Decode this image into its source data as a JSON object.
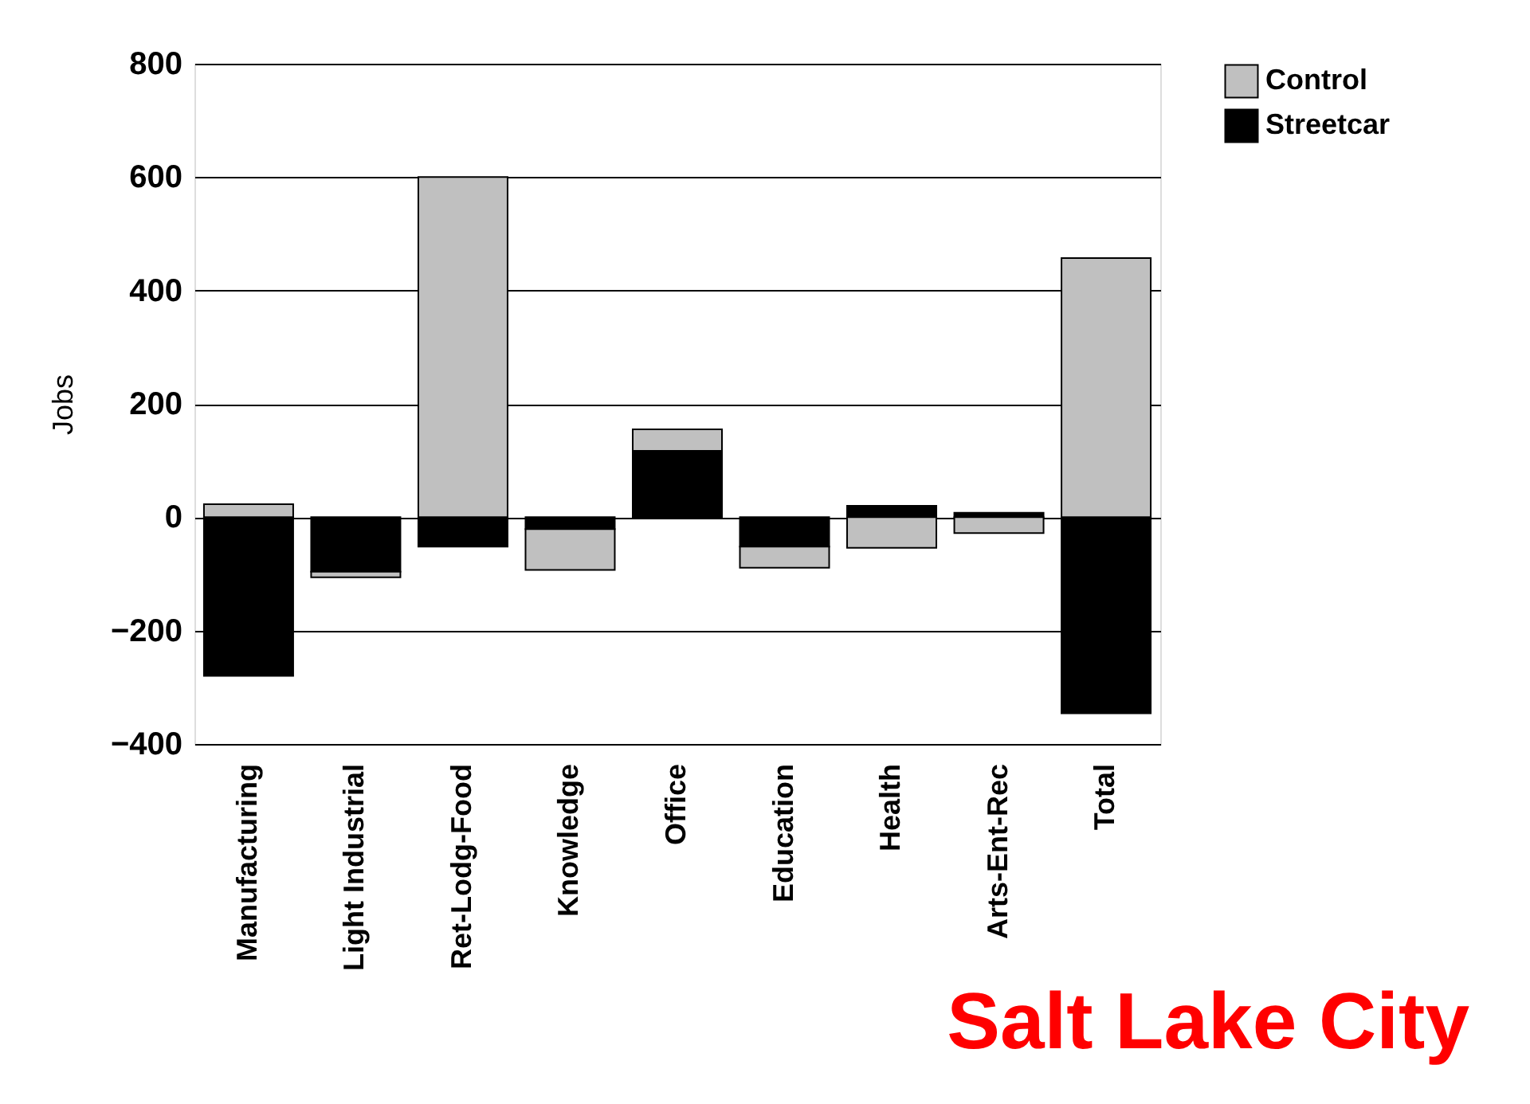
{
  "chart_data": {
    "type": "bar",
    "ylabel": "Jobs",
    "categories": [
      "Manufacturing",
      "Light Industrial",
      "Ret-Lodg-Food",
      "Knowledge",
      "Office",
      "Education",
      "Health",
      "Arts-Ent-Rec",
      "Total"
    ],
    "series": [
      {
        "name": "Streetcar",
        "color": "#000000",
        "values": [
          -280,
          -96,
          -52,
          -21,
          117,
          -52,
          20,
          8,
          -346
        ]
      },
      {
        "name": "Control",
        "color": "#c0c0c0",
        "values": [
          23,
          -10,
          600,
          -72,
          38,
          -37,
          -54,
          -28,
          457
        ]
      }
    ],
    "stacked": true,
    "ylim": [
      -400,
      800
    ],
    "yticks": [
      -400,
      -200,
      0,
      200,
      400,
      600,
      800
    ],
    "grid": "y",
    "legend": "right",
    "annotations": [
      "Salt Lake City"
    ]
  }
}
